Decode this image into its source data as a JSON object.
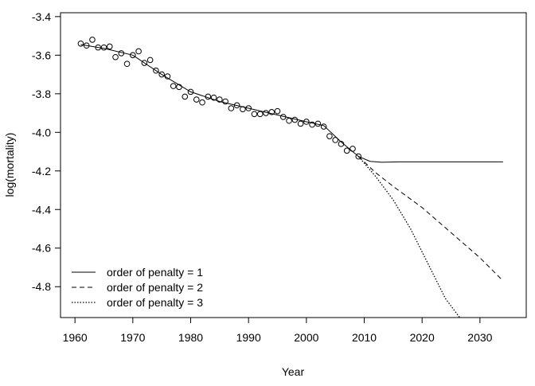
{
  "chart_data": {
    "type": "line",
    "xlabel": "Year",
    "ylabel": "log(mortality)",
    "xlim": [
      1957.5,
      2038
    ],
    "ylim": [
      -4.96,
      -3.38
    ],
    "xticks": [
      1960,
      1970,
      1980,
      1990,
      2000,
      2010,
      2020,
      2030
    ],
    "yticks": [
      -3.4,
      -3.6,
      -3.8,
      -4.0,
      -4.2,
      -4.4,
      -4.6,
      -4.8
    ],
    "legend_position": "bottom-left",
    "grid": false,
    "points": {
      "marker": "open-circle",
      "x": [
        1961,
        1962,
        1963,
        1964,
        1965,
        1966,
        1967,
        1968,
        1969,
        1970,
        1971,
        1972,
        1973,
        1974,
        1975,
        1976,
        1977,
        1978,
        1979,
        1980,
        1981,
        1982,
        1983,
        1984,
        1985,
        1986,
        1987,
        1988,
        1989,
        1990,
        1991,
        1992,
        1993,
        1994,
        1995,
        1996,
        1997,
        1998,
        1999,
        2000,
        2001,
        2002,
        2003,
        2004,
        2005,
        2006,
        2007,
        2008,
        2009
      ],
      "y": [
        -3.54,
        -3.55,
        -3.52,
        -3.56,
        -3.56,
        -3.555,
        -3.61,
        -3.59,
        -3.645,
        -3.6,
        -3.58,
        -3.64,
        -3.625,
        -3.68,
        -3.7,
        -3.71,
        -3.76,
        -3.765,
        -3.815,
        -3.79,
        -3.83,
        -3.845,
        -3.815,
        -3.82,
        -3.83,
        -3.84,
        -3.875,
        -3.86,
        -3.88,
        -3.875,
        -3.905,
        -3.905,
        -3.9,
        -3.895,
        -3.89,
        -3.92,
        -3.94,
        -3.935,
        -3.955,
        -3.945,
        -3.96,
        -3.955,
        -3.97,
        -4.02,
        -4.04,
        -4.06,
        -4.095,
        -4.085,
        -4.125
      ]
    },
    "series": [
      {
        "name": "order of penalty = 1",
        "dash": "solid",
        "x": [
          1961,
          1965,
          1970,
          1975,
          1980,
          1985,
          1990,
          1995,
          2000,
          2003,
          2006,
          2009,
          2011,
          2013,
          2016,
          2020,
          2025,
          2030,
          2034
        ],
        "y": [
          -3.545,
          -3.565,
          -3.6,
          -3.7,
          -3.79,
          -3.84,
          -3.875,
          -3.91,
          -3.945,
          -3.965,
          -4.05,
          -4.125,
          -4.15,
          -4.155,
          -4.153,
          -4.153,
          -4.153,
          -4.153,
          -4.153
        ]
      },
      {
        "name": "order of penalty = 2",
        "dash": "dashed",
        "x": [
          2009,
          2012,
          2015,
          2020,
          2025,
          2030,
          2034
        ],
        "y": [
          -4.125,
          -4.21,
          -4.28,
          -4.39,
          -4.52,
          -4.65,
          -4.77
        ]
      },
      {
        "name": "order of penalty = 3",
        "dash": "dotted",
        "x": [
          2009,
          2012,
          2015,
          2018,
          2021,
          2024,
          2026.5
        ],
        "y": [
          -4.125,
          -4.23,
          -4.35,
          -4.5,
          -4.68,
          -4.86,
          -4.96
        ]
      }
    ]
  }
}
